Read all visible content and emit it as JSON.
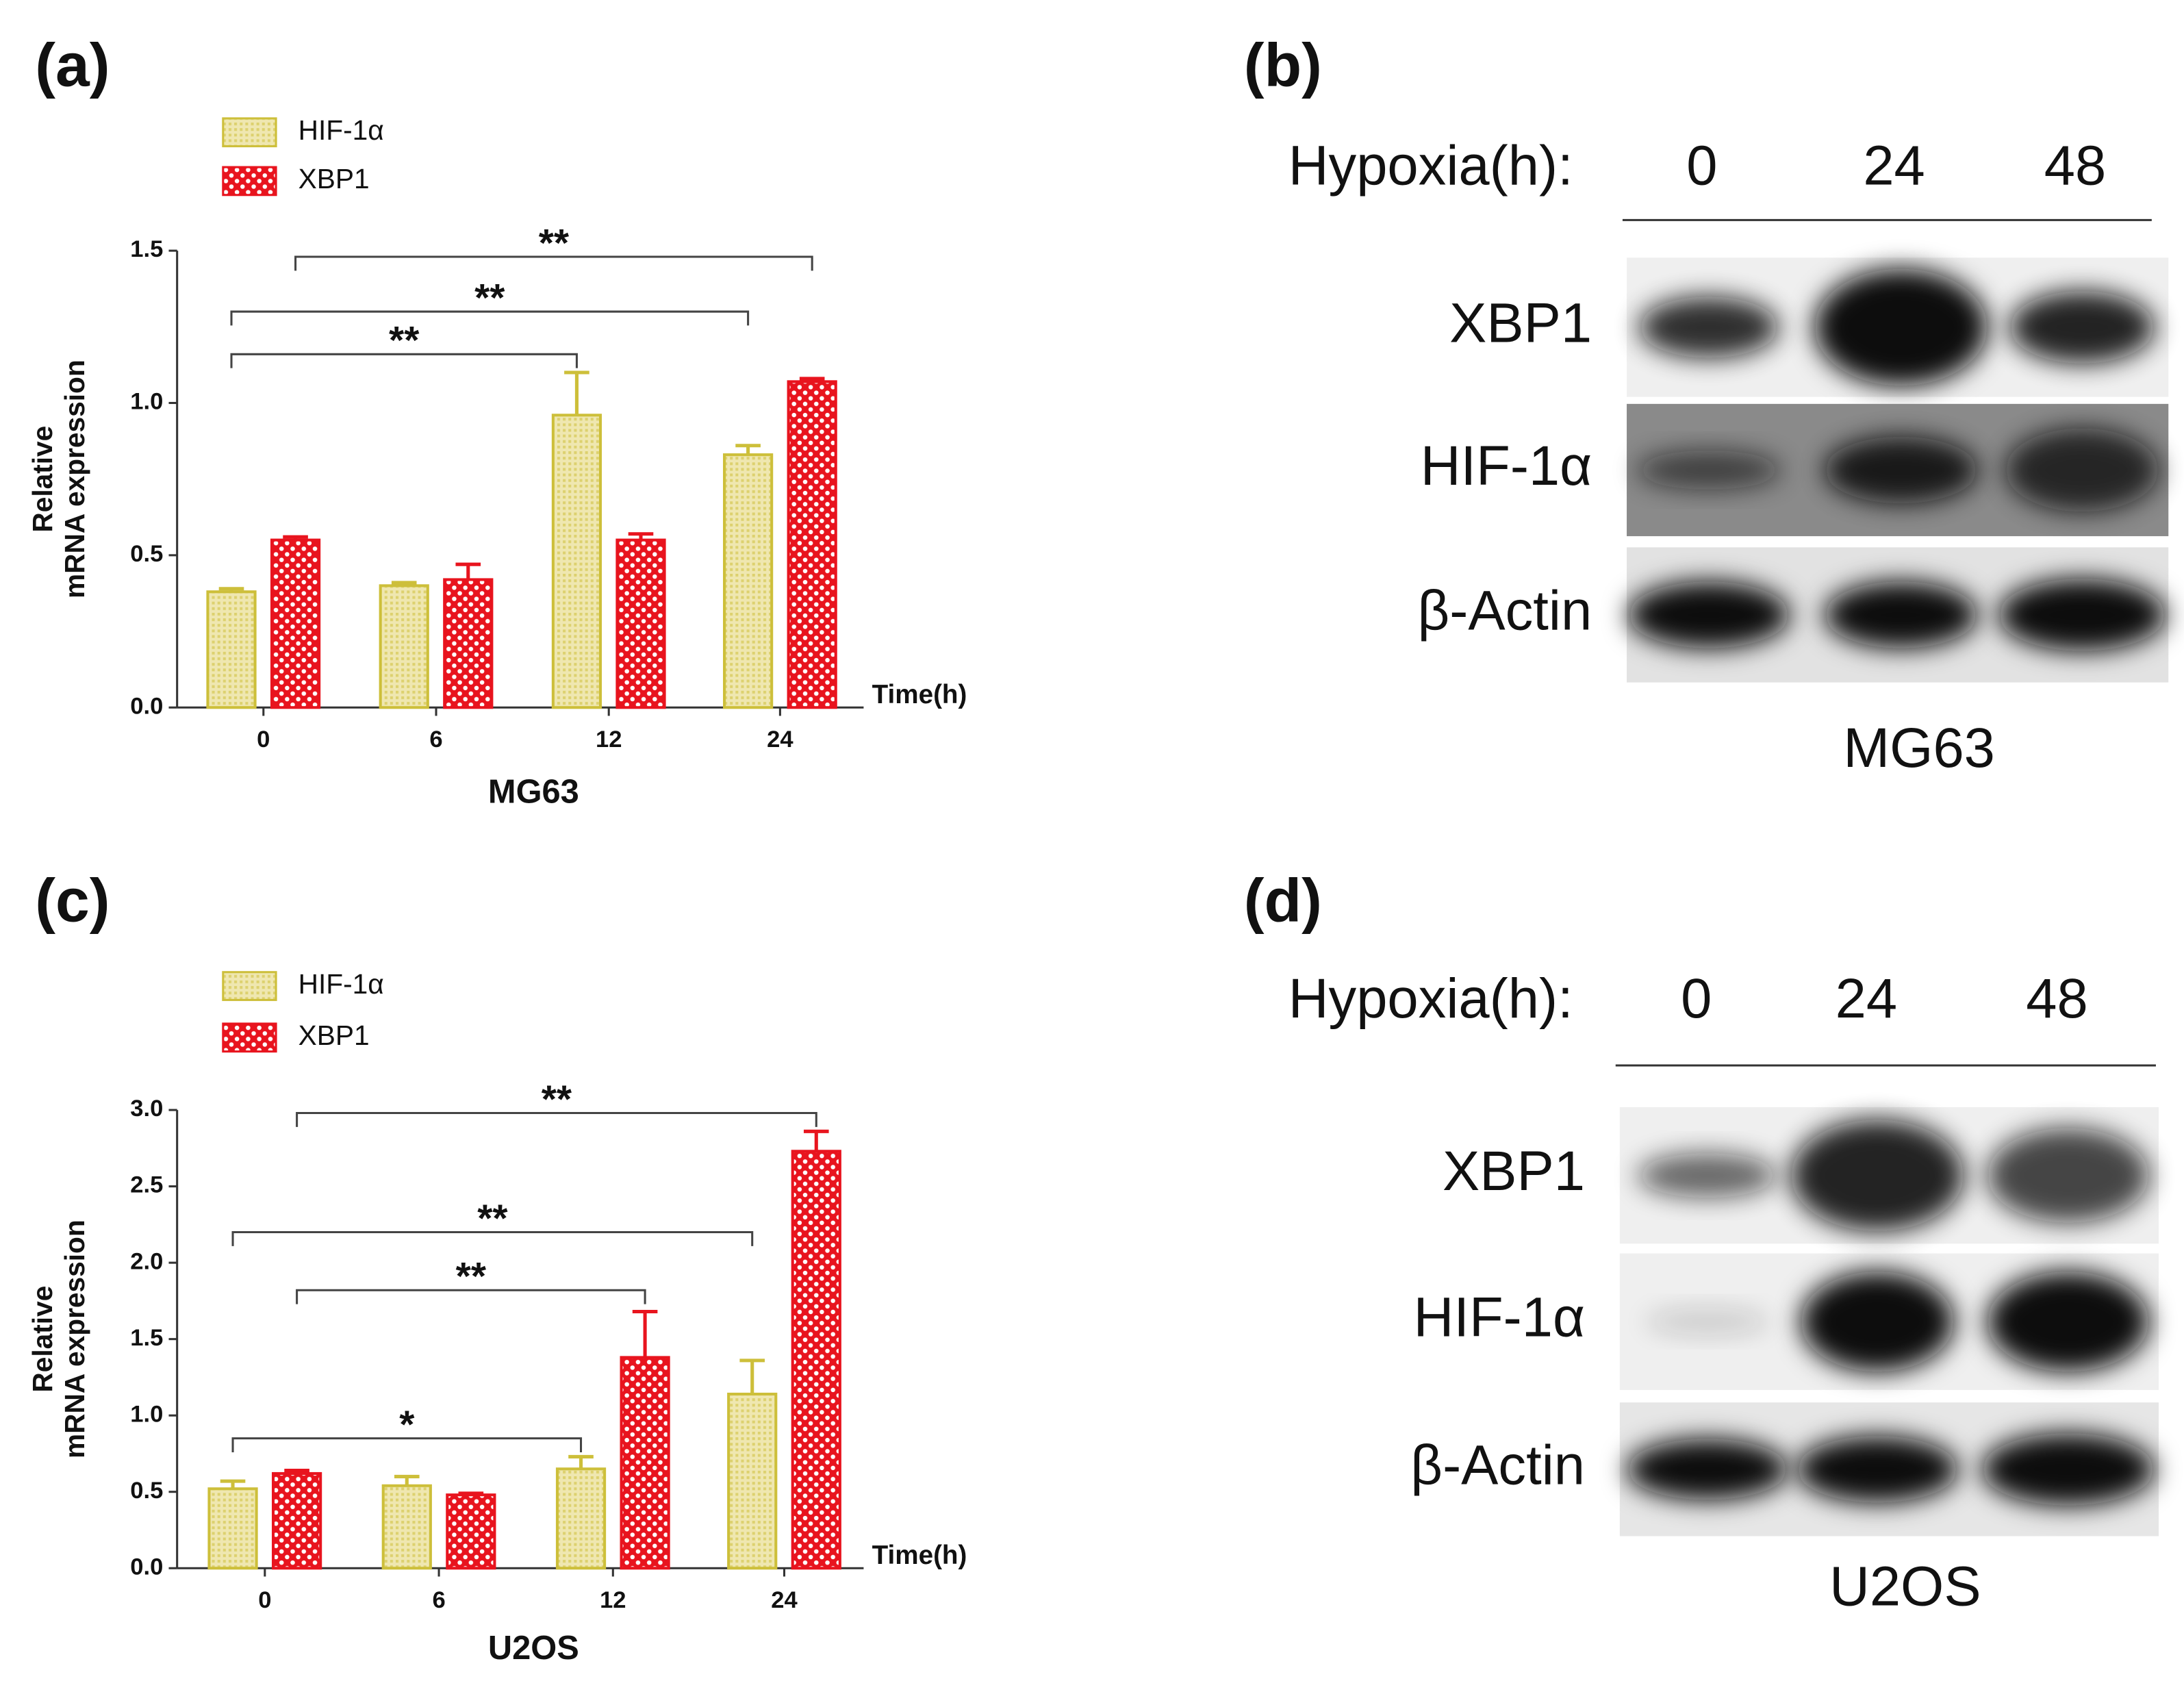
{
  "chart_data": [
    {
      "type": "bar",
      "panel_label": "(a)",
      "subtitle": "MG63",
      "xlabel": "Time(h)",
      "ylabel": [
        "Relative",
        "mRNA expression"
      ],
      "categories": [
        "0",
        "6",
        "12",
        "24"
      ],
      "series": [
        {
          "name": "HIF-1α",
          "color": "#cdbf3a",
          "values": [
            0.38,
            0.4,
            0.96,
            0.83
          ],
          "errors": [
            0.01,
            0.01,
            0.14,
            0.03
          ]
        },
        {
          "name": "XBP1",
          "color": "#e8141e",
          "values": [
            0.55,
            0.42,
            0.55,
            1.07
          ],
          "errors": [
            0.01,
            0.05,
            0.02,
            0.01
          ]
        }
      ],
      "ylim": [
        0,
        1.5
      ],
      "yticks": [
        {
          "value": 0,
          "label": "0.0"
        },
        {
          "value": 0.5,
          "label": "0.5"
        },
        {
          "value": 1,
          "label": "1.0"
        },
        {
          "value": 1.5,
          "label": "1.5"
        }
      ],
      "annotations": [
        "**",
        "**",
        "**"
      ]
    },
    {
      "type": "bar",
      "panel_label": "(c)",
      "subtitle": "U2OS",
      "xlabel": "Time(h)",
      "ylabel": [
        "Relative",
        "mRNA expression"
      ],
      "categories": [
        "0",
        "6",
        "12",
        "24"
      ],
      "series": [
        {
          "name": "HIF-1α",
          "color": "#cdbf3a",
          "values": [
            0.52,
            0.54,
            0.65,
            1.14
          ],
          "errors": [
            0.05,
            0.06,
            0.08,
            0.22
          ]
        },
        {
          "name": "XBP1",
          "color": "#e8141e",
          "values": [
            0.62,
            0.48,
            1.38,
            2.73
          ],
          "errors": [
            0.02,
            0.01,
            0.3,
            0.13
          ]
        }
      ],
      "ylim": [
        0,
        3
      ],
      "yticks": [
        {
          "value": 0,
          "label": "0.0"
        },
        {
          "value": 0.5,
          "label": "0.5"
        },
        {
          "value": 1,
          "label": "1.0"
        },
        {
          "value": 1.5,
          "label": "1.5"
        },
        {
          "value": 2,
          "label": "2.0"
        },
        {
          "value": 2.5,
          "label": "2.5"
        },
        {
          "value": 3,
          "label": "3.0"
        }
      ],
      "annotations": [
        "**",
        "**",
        "**",
        "*"
      ]
    }
  ],
  "blots": [
    {
      "panel_label": "(b)",
      "header": "Hypoxia(h):",
      "lanes": [
        "0",
        "24",
        "48"
      ],
      "rows": [
        "XBP1",
        "HIF-1α",
        "β-Actin"
      ],
      "cell_line": "MG63"
    },
    {
      "panel_label": "(d)",
      "header": "Hypoxia(h):",
      "lanes": [
        "0",
        "24",
        "48"
      ],
      "rows": [
        "XBP1",
        "HIF-1α",
        "β-Actin"
      ],
      "cell_line": "U2OS"
    }
  ]
}
